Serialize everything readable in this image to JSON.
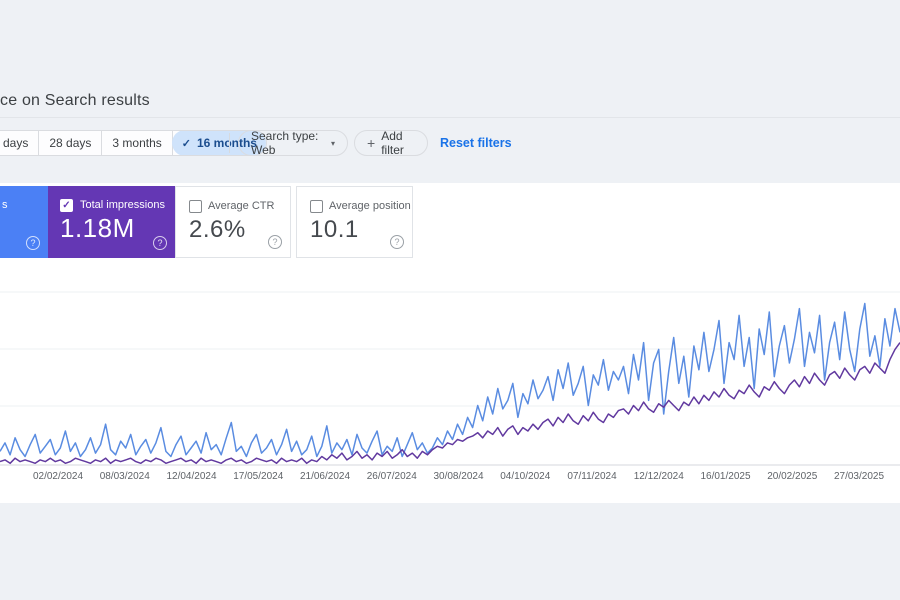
{
  "header": {
    "title_visible": "ce on Search results"
  },
  "filters": {
    "date_ranges": [
      "days",
      "28 days",
      "3 months",
      "16 months"
    ],
    "selected_range": "16 months",
    "selected_check": "✓",
    "search_type_label": "Search type: Web",
    "search_type_caret": "▾",
    "add_filter_plus": "+",
    "add_filter_label": "Add filter",
    "reset_label": "Reset filters"
  },
  "metrics": {
    "cards": [
      {
        "id": "blue-metric",
        "label_visible": "s",
        "color": "#4b80f5",
        "selected": true,
        "help_icon": "?"
      },
      {
        "id": "total-impressions",
        "label": "Total impressions",
        "value": "1.18M",
        "color": "#6437b4",
        "selected": true,
        "check": "✓",
        "help_icon": "?"
      },
      {
        "id": "average-ctr",
        "label": "Average CTR",
        "value": "2.6%",
        "selected": false,
        "help_icon": "?"
      },
      {
        "id": "average-position",
        "label": "Average position",
        "value": "10.1",
        "selected": false,
        "help_icon": "?"
      }
    ]
  },
  "chart_data": {
    "type": "line",
    "title": "",
    "xlabel": "",
    "ylabel": "",
    "grid": "horizontal",
    "legend_position": "none",
    "y_axis_labels_visible": false,
    "units": "relative 0-100 scale (y-axis labels not visible in screenshot; values estimated from pixels, 0 = baseline)",
    "ylim": [
      0,
      100
    ],
    "x_tick_labels": [
      "02/02/2024",
      "08/03/2024",
      "12/04/2024",
      "17/05/2024",
      "21/06/2024",
      "26/07/2024",
      "30/08/2024",
      "04/10/2024",
      "07/11/2024",
      "12/12/2024",
      "16/01/2025",
      "20/02/2025",
      "27/03/2025"
    ],
    "series": [
      {
        "name": "blue metric (card label cut off, ends in 's')",
        "color": "#5a8ce1",
        "values": [
          8,
          13,
          6,
          16,
          9,
          5,
          12,
          18,
          7,
          11,
          15,
          6,
          10,
          20,
          8,
          13,
          5,
          9,
          16,
          7,
          12,
          24,
          9,
          6,
          14,
          10,
          18,
          6,
          11,
          15,
          7,
          13,
          22,
          8,
          5,
          12,
          17,
          6,
          10,
          14,
          7,
          19,
          9,
          12,
          6,
          16,
          25,
          8,
          11,
          5,
          13,
          18,
          7,
          10,
          15,
          6,
          12,
          21,
          8,
          14,
          6,
          9,
          17,
          5,
          11,
          23,
          7,
          13,
          9,
          15,
          6,
          18,
          10,
          7,
          14,
          20,
          6,
          11,
          8,
          16,
          5,
          12,
          19,
          9,
          13,
          7,
          10,
          16,
          12,
          20,
          15,
          24,
          18,
          28,
          22,
          35,
          26,
          40,
          30,
          45,
          33,
          38,
          48,
          28,
          42,
          36,
          50,
          39,
          44,
          52,
          38,
          56,
          45,
          60,
          41,
          48,
          58,
          35,
          53,
          47,
          62,
          44,
          55,
          50,
          58,
          42,
          65,
          50,
          72,
          38,
          60,
          68,
          30,
          55,
          75,
          48,
          64,
          40,
          70,
          56,
          78,
          55,
          68,
          85,
          48,
          72,
          62,
          88,
          58,
          75,
          45,
          80,
          65,
          90,
          52,
          70,
          82,
          60,
          74,
          92,
          58,
          78,
          66,
          88,
          50,
          72,
          84,
          62,
          90,
          68,
          55,
          80,
          95,
          64,
          76,
          58,
          86,
          70,
          92,
          78
        ]
      },
      {
        "name": "Total impressions",
        "color": "#61399f",
        "values": [
          2,
          3,
          1,
          4,
          2,
          3,
          2,
          1,
          3,
          2,
          4,
          2,
          3,
          1,
          2,
          4,
          3,
          2,
          1,
          3,
          2,
          4,
          1,
          3,
          2,
          3,
          4,
          2,
          1,
          3,
          2,
          4,
          3,
          1,
          2,
          3,
          4,
          2,
          3,
          1,
          4,
          2,
          3,
          2,
          1,
          3,
          4,
          2,
          3,
          1,
          2,
          4,
          3,
          2,
          3,
          1,
          4,
          2,
          3,
          2,
          4,
          1,
          3,
          2,
          5,
          3,
          6,
          4,
          7,
          3,
          5,
          8,
          4,
          6,
          3,
          7,
          5,
          8,
          4,
          6,
          9,
          5,
          7,
          4,
          8,
          6,
          9,
          11,
          10,
          13,
          12,
          15,
          14,
          16,
          17,
          19,
          16,
          20,
          18,
          22,
          17,
          21,
          23,
          18,
          22,
          20,
          24,
          21,
          25,
          27,
          23,
          28,
          25,
          30,
          26,
          24,
          29,
          26,
          31,
          27,
          25,
          30,
          28,
          32,
          33,
          30,
          35,
          32,
          37,
          33,
          31,
          36,
          34,
          38,
          35,
          32,
          37,
          35,
          40,
          36,
          41,
          38,
          43,
          40,
          45,
          41,
          39,
          44,
          42,
          47,
          43,
          40,
          46,
          44,
          49,
          45,
          42,
          47,
          50,
          46,
          52,
          48,
          54,
          50,
          47,
          53,
          55,
          51,
          57,
          53,
          50,
          56,
          58,
          54,
          60,
          57,
          54,
          62,
          68,
          72
        ]
      }
    ]
  }
}
